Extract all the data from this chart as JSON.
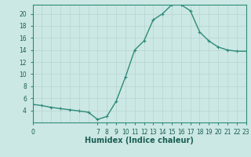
{
  "x": [
    0,
    1,
    2,
    3,
    4,
    5,
    6,
    7,
    8,
    9,
    10,
    11,
    12,
    13,
    14,
    15,
    16,
    17,
    18,
    19,
    20,
    21,
    22,
    23
  ],
  "y": [
    5,
    4.8,
    4.5,
    4.3,
    4.1,
    3.9,
    3.7,
    2.5,
    3.0,
    5.5,
    9.5,
    14.0,
    15.5,
    19.0,
    20.0,
    21.5,
    21.5,
    20.5,
    17.0,
    15.5,
    14.5,
    14.0,
    13.8,
    13.8
  ],
  "line_color": "#2e8b7a",
  "marker": "+",
  "bg_color": "#cce8e4",
  "grid_major_color": "#b8d4d0",
  "grid_minor_color": "#d4e8e4",
  "axis_color": "#2e8b7a",
  "xlabel": "Humidex (Indice chaleur)",
  "xlim": [
    0,
    23
  ],
  "ylim": [
    2,
    21.5
  ],
  "yticks": [
    4,
    6,
    8,
    10,
    12,
    14,
    16,
    18,
    20
  ],
  "xtick_positions": [
    0,
    7,
    8,
    9,
    10,
    11,
    12,
    13,
    14,
    15,
    16,
    17,
    18,
    19,
    20,
    21,
    22,
    23
  ],
  "xtick_labels": [
    "0",
    "7",
    "8",
    "9",
    "10",
    "11",
    "12",
    "13",
    "14",
    "15",
    "16",
    "17",
    "18",
    "19",
    "20",
    "21",
    "22",
    "23"
  ],
  "font_color": "#1a5e54",
  "tick_fontsize": 5.5,
  "label_fontsize": 7.0,
  "linewidth": 1.0,
  "markersize": 3.5
}
